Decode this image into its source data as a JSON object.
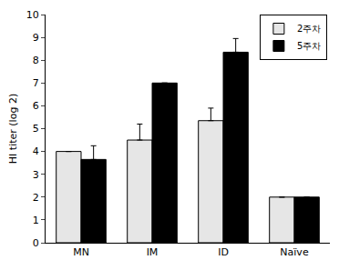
{
  "chart_data": {
    "type": "bar",
    "y_label": "HI titer (log 2)",
    "categories": [
      "MN",
      "IM",
      "ID",
      "Naïve"
    ],
    "series": [
      {
        "name": "2주차",
        "color": "#e6e6e6",
        "values": [
          4,
          4.5,
          5.35,
          2
        ],
        "errors": [
          0,
          0.7,
          0.55,
          0
        ]
      },
      {
        "name": "5주차",
        "color": "#000000",
        "values": [
          3.65,
          7,
          8.35,
          2
        ],
        "errors": [
          0.6,
          0,
          0.6,
          0
        ]
      }
    ],
    "ylim": [
      0,
      10
    ],
    "yticks": [
      0,
      1,
      2,
      3,
      4,
      5,
      6,
      7,
      8,
      9,
      10
    ],
    "grid": false,
    "legend": "top right"
  }
}
